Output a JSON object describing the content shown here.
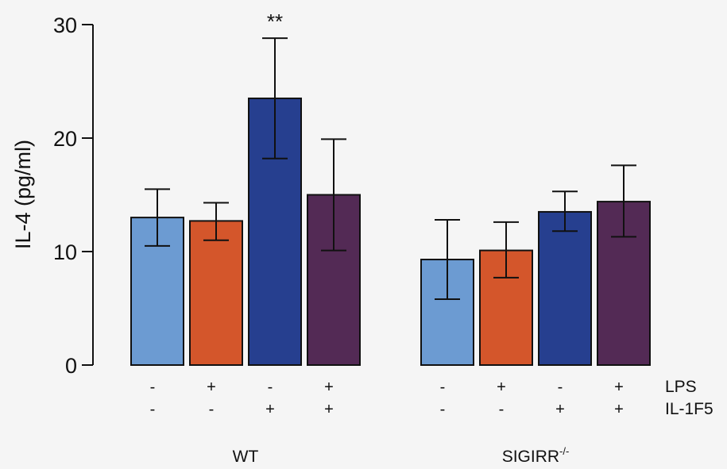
{
  "chart_data": {
    "type": "bar",
    "ylabel": "IL-4 (pg/ml)",
    "ylim": [
      0,
      30
    ],
    "yticks": [
      "0",
      "10",
      "20",
      "30"
    ],
    "groups": [
      {
        "name": "WT",
        "bars": [
          {
            "value": 13.0,
            "err_low": 10.5,
            "err_high": 15.5,
            "color": "#6c9bd2",
            "lps": "-",
            "il1f5": "-",
            "annotation": ""
          },
          {
            "value": 12.7,
            "err_low": 11.0,
            "err_high": 14.3,
            "color": "#d4562b",
            "lps": "+",
            "il1f5": "-",
            "annotation": ""
          },
          {
            "value": 23.5,
            "err_low": 18.2,
            "err_high": 28.8,
            "color": "#263f8f",
            "lps": "-",
            "il1f5": "+",
            "annotation": "**"
          },
          {
            "value": 15.0,
            "err_low": 10.1,
            "err_high": 19.9,
            "color": "#532a55",
            "lps": "+",
            "il1f5": "+",
            "annotation": ""
          }
        ]
      },
      {
        "name": "SIGIRR",
        "name_superscript": "-/-",
        "bars": [
          {
            "value": 9.3,
            "err_low": 5.8,
            "err_high": 12.8,
            "color": "#6c9bd2",
            "lps": "-",
            "il1f5": "-",
            "annotation": ""
          },
          {
            "value": 10.1,
            "err_low": 7.7,
            "err_high": 12.6,
            "color": "#d4562b",
            "lps": "+",
            "il1f5": "-",
            "annotation": ""
          },
          {
            "value": 13.5,
            "err_low": 11.8,
            "err_high": 15.3,
            "color": "#263f8f",
            "lps": "-",
            "il1f5": "+",
            "annotation": ""
          },
          {
            "value": 14.4,
            "err_low": 11.3,
            "err_high": 17.6,
            "color": "#532a55",
            "lps": "+",
            "il1f5": "+",
            "annotation": ""
          }
        ]
      }
    ],
    "row_labels": {
      "lps": "LPS",
      "il1f5": "IL-1F5"
    },
    "grid": false,
    "legend": "none"
  }
}
